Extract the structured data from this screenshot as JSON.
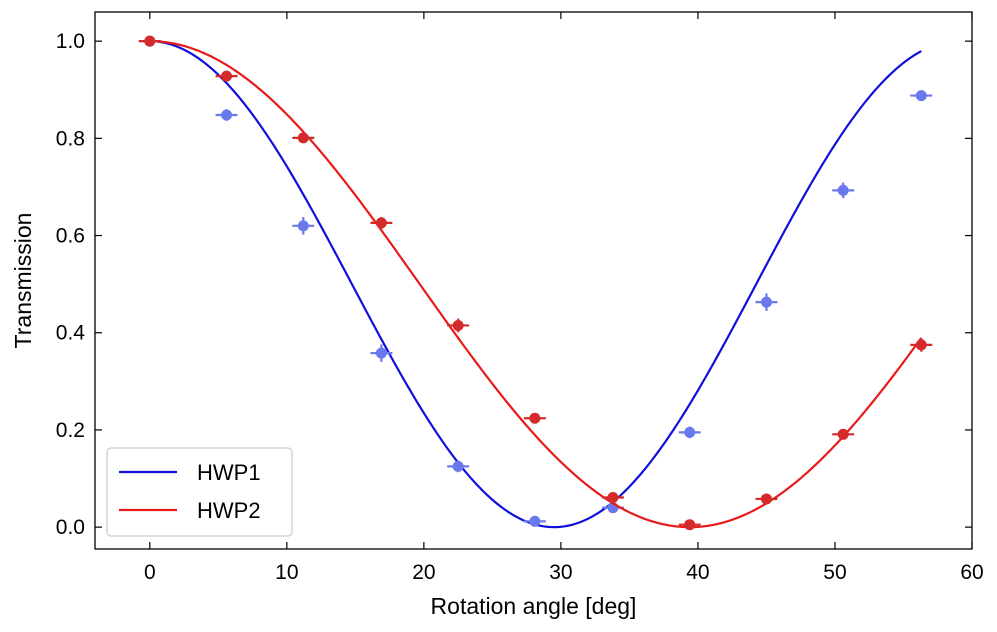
{
  "chart_data": {
    "type": "scatter",
    "title": "",
    "xlabel": "Rotation angle [deg]",
    "ylabel": "Transmission",
    "xlim": [
      -4,
      60
    ],
    "ylim": [
      -0.045,
      1.06
    ],
    "x_ticks": [
      0,
      10,
      20,
      30,
      40,
      50,
      60
    ],
    "y_ticks": [
      0.0,
      0.2,
      0.4,
      0.6,
      0.8,
      1.0
    ],
    "x_tick_labels": [
      "0",
      "10",
      "20",
      "30",
      "40",
      "50",
      "60"
    ],
    "y_tick_labels": [
      "0.0",
      "0.2",
      "0.4",
      "0.6",
      "0.8",
      "1.0"
    ],
    "grid": false,
    "legend_position": "lower-left",
    "series": [
      {
        "name": "HWP1",
        "fit_color": "#1010dd",
        "point_color": "#6a78ee",
        "x": [
          0,
          5.6,
          11.2,
          16.9,
          22.5,
          28.1,
          33.8,
          39.4,
          45.0,
          50.6,
          56.3
        ],
        "y": [
          1.0,
          0.848,
          0.62,
          0.358,
          0.125,
          0.012,
          0.04,
          0.195,
          0.463,
          0.693,
          0.888
        ],
        "x_err": [
          0.8,
          0.8,
          0.8,
          0.8,
          0.8,
          0.8,
          0.8,
          0.8,
          0.8,
          0.8,
          0.8
        ],
        "y_err": [
          0.005,
          0.012,
          0.018,
          0.018,
          0.012,
          0.006,
          0.006,
          0.012,
          0.018,
          0.016,
          0.01
        ],
        "fit": {
          "model": "cos^2(2*(x - x0)*(pi/180)*scale)",
          "min_at": 29.5,
          "max_at": 0
        }
      },
      {
        "name": "HWP2",
        "fit_color": "#e81a1a",
        "point_color": "#d42a2a",
        "x": [
          0,
          5.6,
          11.2,
          16.9,
          22.5,
          28.1,
          33.8,
          39.4,
          45.0,
          50.6,
          56.3
        ],
        "y": [
          1.0,
          0.928,
          0.801,
          0.626,
          0.415,
          0.224,
          0.061,
          0.005,
          0.058,
          0.191,
          0.375
        ],
        "x_err": [
          0.8,
          0.8,
          0.8,
          0.8,
          0.8,
          0.8,
          0.8,
          0.8,
          0.8,
          0.8,
          0.8
        ],
        "y_err": [
          0.005,
          0.008,
          0.008,
          0.012,
          0.014,
          0.01,
          0.006,
          0.004,
          0.006,
          0.01,
          0.014
        ],
        "fit": {
          "model": "cos^2(2*(x - x0)*(pi/180)*scale)",
          "min_at": 39.4,
          "max_at": 0
        }
      }
    ]
  }
}
